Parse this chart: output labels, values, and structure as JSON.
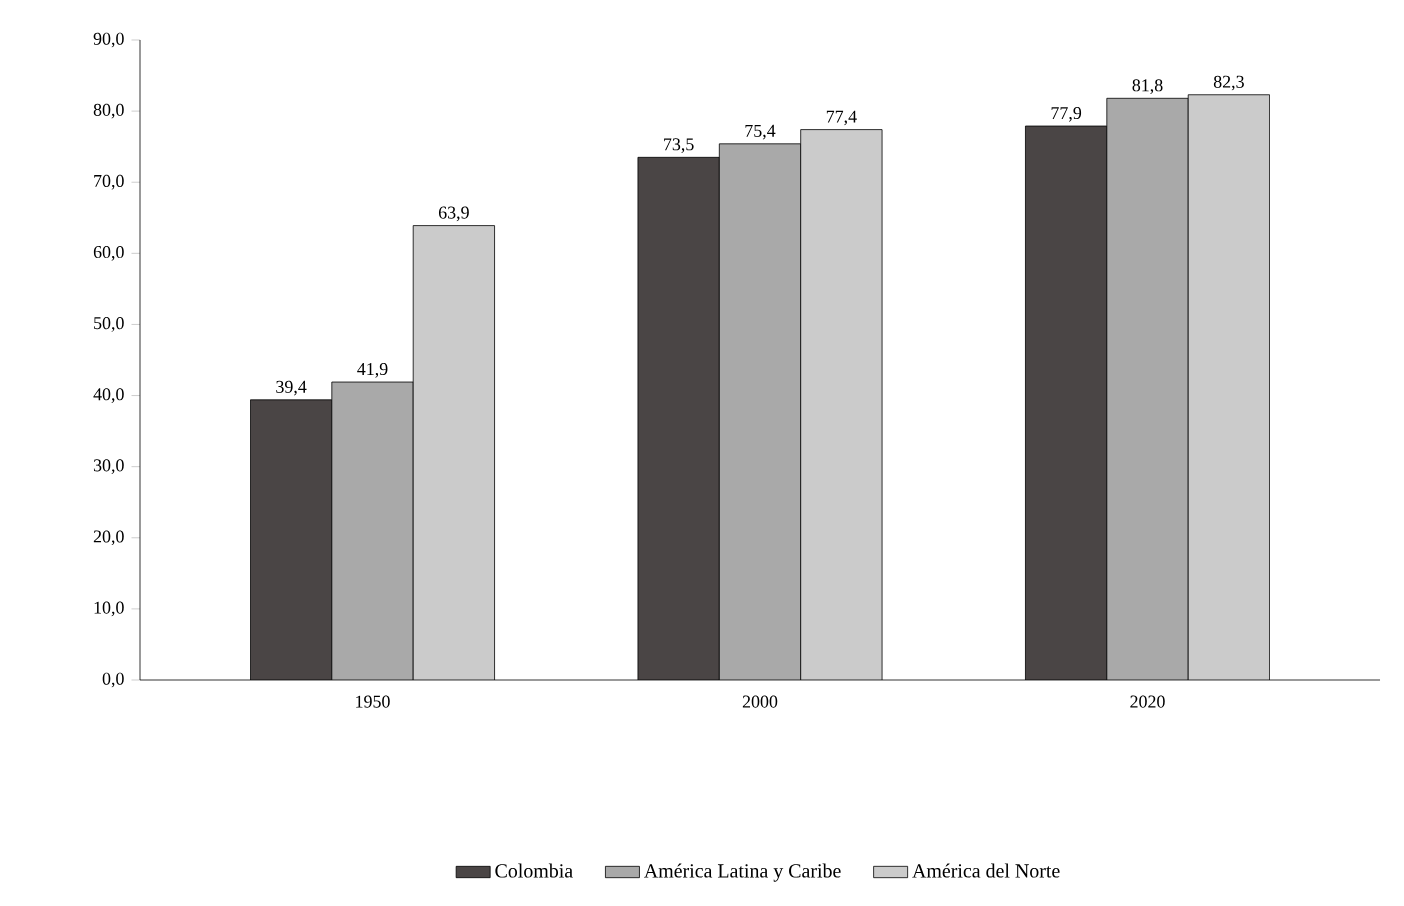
{
  "chart_data": {
    "type": "bar",
    "categories": [
      "1950",
      "2000",
      "2020"
    ],
    "series": [
      {
        "name": "Colombia",
        "color": "#4a4545",
        "values": [
          39.4,
          73.5,
          77.9
        ],
        "value_labels": [
          "39,4",
          "73,5",
          "77,9"
        ]
      },
      {
        "name": "América Latina y Caribe",
        "color": "#a9a9a9",
        "values": [
          41.9,
          75.4,
          81.8
        ],
        "value_labels": [
          "41,9",
          "75,4",
          "81,8"
        ]
      },
      {
        "name": "América del Norte",
        "color": "#cbcbcb",
        "values": [
          63.9,
          77.4,
          82.3
        ],
        "value_labels": [
          "63,9",
          "77,4",
          "82,3"
        ]
      }
    ],
    "ylim": [
      0,
      90
    ],
    "yticks": [
      {
        "value": 0,
        "label": "0,0"
      },
      {
        "value": 10,
        "label": "10,0"
      },
      {
        "value": 20,
        "label": "20,0"
      },
      {
        "value": 30,
        "label": "30,0"
      },
      {
        "value": 40,
        "label": "40,0"
      },
      {
        "value": 50,
        "label": "50,0"
      },
      {
        "value": 60,
        "label": "60,0"
      },
      {
        "value": 70,
        "label": "70,0"
      },
      {
        "value": 80,
        "label": "80,0"
      },
      {
        "value": 90,
        "label": "90,0"
      }
    ],
    "grid": false,
    "legend": "bottom"
  }
}
